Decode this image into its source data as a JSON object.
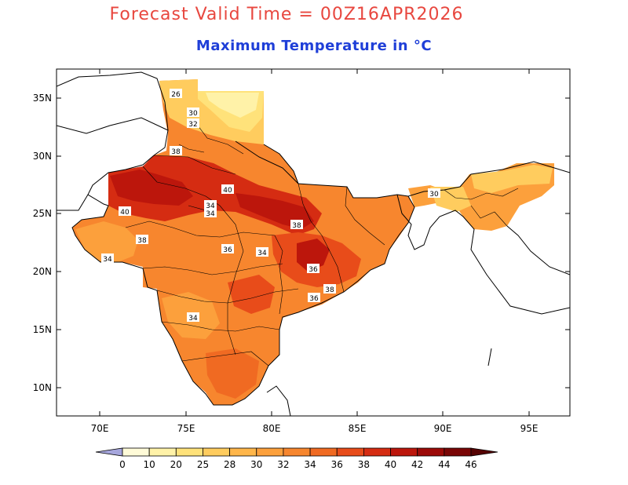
{
  "header": {
    "title": "Forecast Valid Time = 00Z16APR2026",
    "subtitle": "Maximum Temperature in °C",
    "title_color": "#e8473f",
    "subtitle_color": "#1f3fd8"
  },
  "map": {
    "lon_ticks": [
      "70E",
      "75E",
      "80E",
      "85E",
      "90E",
      "95E"
    ],
    "lat_ticks": [
      "35N",
      "30N",
      "25N",
      "20N",
      "15N",
      "10N"
    ],
    "contour_labels": [
      "26",
      "30",
      "32",
      "38",
      "40",
      "34",
      "34",
      "40",
      "38",
      "34",
      "36",
      "34",
      "38",
      "38",
      "36",
      "36",
      "34",
      "30"
    ]
  },
  "colorbar": {
    "tick_labels": [
      "0",
      "10",
      "20",
      "25",
      "28",
      "30",
      "32",
      "34",
      "36",
      "38",
      "40",
      "42",
      "44",
      "46"
    ],
    "colors": [
      "#a6a6dc",
      "#fffbd8",
      "#fff2a8",
      "#ffe27a",
      "#ffcc5e",
      "#ffb64a",
      "#fca03c",
      "#f7862e",
      "#f06a22",
      "#e84c1a",
      "#d52c12",
      "#bc160c",
      "#9c0a08",
      "#7a0606",
      "#560303"
    ]
  }
}
